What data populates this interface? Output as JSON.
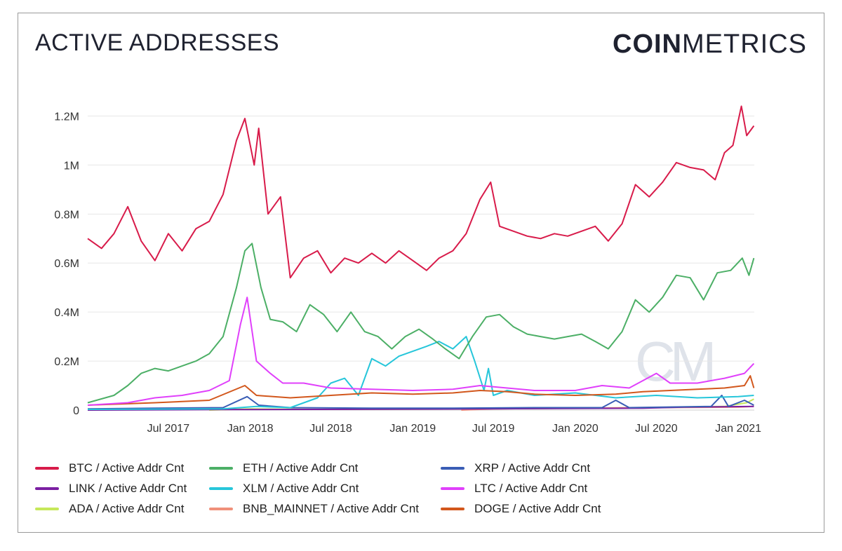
{
  "header": {
    "title": "ACTIVE ADDRESSES",
    "logo_bold": "COIN",
    "logo_light": "METRICS"
  },
  "watermark": "CM",
  "chart_data": {
    "type": "line",
    "title": "ACTIVE ADDRESSES",
    "xlabel": "",
    "ylabel": "",
    "ylim": [
      0,
      1250000
    ],
    "xlim": [
      "2017-01-01",
      "2021-02-06"
    ],
    "y_ticks": [
      {
        "value": 0,
        "label": "0"
      },
      {
        "value": 200000,
        "label": "0.2M"
      },
      {
        "value": 400000,
        "label": "0.4M"
      },
      {
        "value": 600000,
        "label": "0.6M"
      },
      {
        "value": 800000,
        "label": "0.8M"
      },
      {
        "value": 1000000,
        "label": "1M"
      },
      {
        "value": 1200000,
        "label": "1.2M"
      }
    ],
    "x_ticks": [
      {
        "date": "2017-07-01",
        "label": "Jul 2017"
      },
      {
        "date": "2018-01-01",
        "label": "Jan 2018"
      },
      {
        "date": "2018-07-01",
        "label": "Jul 2018"
      },
      {
        "date": "2019-01-01",
        "label": "Jan 2019"
      },
      {
        "date": "2019-07-01",
        "label": "Jul 2019"
      },
      {
        "date": "2020-01-01",
        "label": "Jan 2020"
      },
      {
        "date": "2020-07-01",
        "label": "Jul 2020"
      },
      {
        "date": "2021-01-01",
        "label": "Jan 2021"
      }
    ],
    "grid": true,
    "legend_position": "bottom",
    "series": [
      {
        "name": "BTC / Active Addr Cnt",
        "color": "#d81b4a",
        "points": [
          [
            "2017-01-01",
            700000
          ],
          [
            "2017-02-01",
            660000
          ],
          [
            "2017-03-01",
            720000
          ],
          [
            "2017-04-01",
            830000
          ],
          [
            "2017-05-01",
            690000
          ],
          [
            "2017-06-01",
            610000
          ],
          [
            "2017-07-01",
            720000
          ],
          [
            "2017-08-01",
            650000
          ],
          [
            "2017-09-01",
            740000
          ],
          [
            "2017-10-01",
            770000
          ],
          [
            "2017-11-01",
            880000
          ],
          [
            "2017-12-01",
            1100000
          ],
          [
            "2017-12-20",
            1190000
          ],
          [
            "2018-01-10",
            1000000
          ],
          [
            "2018-01-20",
            1150000
          ],
          [
            "2018-02-10",
            800000
          ],
          [
            "2018-03-10",
            870000
          ],
          [
            "2018-04-01",
            540000
          ],
          [
            "2018-05-01",
            620000
          ],
          [
            "2018-06-01",
            650000
          ],
          [
            "2018-07-01",
            560000
          ],
          [
            "2018-08-01",
            620000
          ],
          [
            "2018-09-01",
            600000
          ],
          [
            "2018-10-01",
            640000
          ],
          [
            "2018-11-01",
            600000
          ],
          [
            "2018-12-01",
            650000
          ],
          [
            "2019-01-01",
            610000
          ],
          [
            "2019-02-01",
            570000
          ],
          [
            "2019-03-01",
            620000
          ],
          [
            "2019-04-01",
            650000
          ],
          [
            "2019-05-01",
            720000
          ],
          [
            "2019-06-01",
            860000
          ],
          [
            "2019-06-25",
            930000
          ],
          [
            "2019-07-15",
            750000
          ],
          [
            "2019-08-15",
            730000
          ],
          [
            "2019-09-15",
            710000
          ],
          [
            "2019-10-15",
            700000
          ],
          [
            "2019-11-15",
            720000
          ],
          [
            "2019-12-15",
            710000
          ],
          [
            "2020-01-15",
            730000
          ],
          [
            "2020-02-15",
            750000
          ],
          [
            "2020-03-15",
            690000
          ],
          [
            "2020-04-15",
            760000
          ],
          [
            "2020-05-15",
            920000
          ],
          [
            "2020-06-15",
            870000
          ],
          [
            "2020-07-15",
            930000
          ],
          [
            "2020-08-15",
            1010000
          ],
          [
            "2020-09-15",
            990000
          ],
          [
            "2020-10-15",
            980000
          ],
          [
            "2020-11-10",
            940000
          ],
          [
            "2020-12-01",
            1050000
          ],
          [
            "2020-12-20",
            1080000
          ],
          [
            "2021-01-08",
            1240000
          ],
          [
            "2021-01-20",
            1120000
          ],
          [
            "2021-02-05",
            1160000
          ]
        ]
      },
      {
        "name": "ETH / Active Addr Cnt",
        "color": "#4caf66",
        "points": [
          [
            "2017-01-01",
            30000
          ],
          [
            "2017-03-01",
            60000
          ],
          [
            "2017-04-01",
            100000
          ],
          [
            "2017-05-01",
            150000
          ],
          [
            "2017-06-01",
            170000
          ],
          [
            "2017-07-01",
            160000
          ],
          [
            "2017-08-01",
            180000
          ],
          [
            "2017-09-01",
            200000
          ],
          [
            "2017-10-01",
            230000
          ],
          [
            "2017-11-01",
            300000
          ],
          [
            "2017-12-01",
            500000
          ],
          [
            "2017-12-20",
            650000
          ],
          [
            "2018-01-05",
            680000
          ],
          [
            "2018-01-25",
            500000
          ],
          [
            "2018-02-15",
            370000
          ],
          [
            "2018-03-15",
            360000
          ],
          [
            "2018-04-15",
            320000
          ],
          [
            "2018-05-15",
            430000
          ],
          [
            "2018-06-15",
            390000
          ],
          [
            "2018-07-15",
            320000
          ],
          [
            "2018-08-15",
            400000
          ],
          [
            "2018-09-15",
            320000
          ],
          [
            "2018-10-15",
            300000
          ],
          [
            "2018-11-15",
            250000
          ],
          [
            "2018-12-15",
            300000
          ],
          [
            "2019-01-15",
            330000
          ],
          [
            "2019-02-15",
            290000
          ],
          [
            "2019-03-15",
            250000
          ],
          [
            "2019-04-15",
            210000
          ],
          [
            "2019-05-15",
            300000
          ],
          [
            "2019-06-15",
            380000
          ],
          [
            "2019-07-15",
            390000
          ],
          [
            "2019-08-15",
            340000
          ],
          [
            "2019-09-15",
            310000
          ],
          [
            "2019-10-15",
            300000
          ],
          [
            "2019-11-15",
            290000
          ],
          [
            "2019-12-15",
            300000
          ],
          [
            "2020-01-15",
            310000
          ],
          [
            "2020-02-15",
            280000
          ],
          [
            "2020-03-15",
            250000
          ],
          [
            "2020-04-15",
            320000
          ],
          [
            "2020-05-15",
            450000
          ],
          [
            "2020-06-15",
            400000
          ],
          [
            "2020-07-15",
            460000
          ],
          [
            "2020-08-15",
            550000
          ],
          [
            "2020-09-15",
            540000
          ],
          [
            "2020-10-15",
            450000
          ],
          [
            "2020-11-15",
            560000
          ],
          [
            "2020-12-15",
            570000
          ],
          [
            "2021-01-10",
            620000
          ],
          [
            "2021-01-25",
            550000
          ],
          [
            "2021-02-05",
            620000
          ]
        ]
      },
      {
        "name": "XRP / Active Addr Cnt",
        "color": "#3a5db5",
        "points": [
          [
            "2017-01-01",
            5000
          ],
          [
            "2017-06-01",
            8000
          ],
          [
            "2017-11-01",
            10000
          ],
          [
            "2017-12-25",
            55000
          ],
          [
            "2018-01-20",
            20000
          ],
          [
            "2018-04-01",
            10000
          ],
          [
            "2018-10-01",
            8000
          ],
          [
            "2019-04-01",
            8000
          ],
          [
            "2019-10-01",
            10000
          ],
          [
            "2020-03-01",
            10000
          ],
          [
            "2020-04-01",
            40000
          ],
          [
            "2020-05-01",
            10000
          ],
          [
            "2020-11-01",
            15000
          ],
          [
            "2020-11-25",
            60000
          ],
          [
            "2020-12-10",
            15000
          ],
          [
            "2021-01-15",
            40000
          ],
          [
            "2021-02-05",
            20000
          ]
        ]
      },
      {
        "name": "LINK / Active Addr Cnt",
        "color": "#7b1fa2",
        "points": [
          [
            "2017-01-01",
            0
          ],
          [
            "2017-10-01",
            2000
          ],
          [
            "2018-06-01",
            3000
          ],
          [
            "2019-06-01",
            5000
          ],
          [
            "2020-06-01",
            8000
          ],
          [
            "2020-09-01",
            12000
          ],
          [
            "2021-02-05",
            15000
          ]
        ]
      },
      {
        "name": "XLM / Active Addr Cnt",
        "color": "#26c6da",
        "points": [
          [
            "2017-01-01",
            3000
          ],
          [
            "2017-11-01",
            5000
          ],
          [
            "2018-01-15",
            15000
          ],
          [
            "2018-04-01",
            10000
          ],
          [
            "2018-06-01",
            50000
          ],
          [
            "2018-07-01",
            110000
          ],
          [
            "2018-08-01",
            130000
          ],
          [
            "2018-09-01",
            60000
          ],
          [
            "2018-10-01",
            210000
          ],
          [
            "2018-11-01",
            180000
          ],
          [
            "2018-12-01",
            220000
          ],
          [
            "2019-01-01",
            240000
          ],
          [
            "2019-02-01",
            260000
          ],
          [
            "2019-03-01",
            280000
          ],
          [
            "2019-04-01",
            250000
          ],
          [
            "2019-05-01",
            300000
          ],
          [
            "2019-05-20",
            200000
          ],
          [
            "2019-06-10",
            80000
          ],
          [
            "2019-06-20",
            170000
          ],
          [
            "2019-07-01",
            60000
          ],
          [
            "2019-08-01",
            80000
          ],
          [
            "2019-10-01",
            60000
          ],
          [
            "2020-01-01",
            70000
          ],
          [
            "2020-04-01",
            50000
          ],
          [
            "2020-07-01",
            60000
          ],
          [
            "2020-10-01",
            50000
          ],
          [
            "2021-01-01",
            55000
          ],
          [
            "2021-02-05",
            60000
          ]
        ]
      },
      {
        "name": "LTC / Active Addr Cnt",
        "color": "#e040fb",
        "points": [
          [
            "2017-01-01",
            20000
          ],
          [
            "2017-04-01",
            30000
          ],
          [
            "2017-06-01",
            50000
          ],
          [
            "2017-08-01",
            60000
          ],
          [
            "2017-10-01",
            80000
          ],
          [
            "2017-11-15",
            120000
          ],
          [
            "2017-12-10",
            350000
          ],
          [
            "2017-12-25",
            460000
          ],
          [
            "2018-01-15",
            200000
          ],
          [
            "2018-02-15",
            150000
          ],
          [
            "2018-03-15",
            110000
          ],
          [
            "2018-05-01",
            110000
          ],
          [
            "2018-07-01",
            90000
          ],
          [
            "2018-10-01",
            85000
          ],
          [
            "2019-01-01",
            80000
          ],
          [
            "2019-04-01",
            85000
          ],
          [
            "2019-06-01",
            100000
          ],
          [
            "2019-08-01",
            90000
          ],
          [
            "2019-10-01",
            80000
          ],
          [
            "2020-01-01",
            80000
          ],
          [
            "2020-03-01",
            100000
          ],
          [
            "2020-05-01",
            90000
          ],
          [
            "2020-07-01",
            150000
          ],
          [
            "2020-08-01",
            110000
          ],
          [
            "2020-10-01",
            110000
          ],
          [
            "2020-12-01",
            130000
          ],
          [
            "2021-01-15",
            150000
          ],
          [
            "2021-02-05",
            190000
          ]
        ]
      },
      {
        "name": "ADA / Active Addr Cnt",
        "color": "#c6e85a",
        "points": [
          [
            "2017-10-01",
            0
          ],
          [
            "2018-01-01",
            5000
          ],
          [
            "2018-06-01",
            3000
          ],
          [
            "2019-06-01",
            5000
          ],
          [
            "2020-06-01",
            10000
          ],
          [
            "2020-12-01",
            15000
          ],
          [
            "2021-01-20",
            30000
          ],
          [
            "2021-02-05",
            45000
          ]
        ]
      },
      {
        "name": "BNB_MAINNET / Active Addr Cnt",
        "color": "#f0907a",
        "points": [
          [
            "2019-04-20",
            0
          ],
          [
            "2019-07-01",
            5000
          ],
          [
            "2020-01-01",
            8000
          ],
          [
            "2020-07-01",
            10000
          ],
          [
            "2021-01-01",
            12000
          ],
          [
            "2021-02-05",
            15000
          ]
        ]
      },
      {
        "name": "DOGE / Active Addr Cnt",
        "color": "#d2571c",
        "points": [
          [
            "2017-01-01",
            20000
          ],
          [
            "2017-06-01",
            30000
          ],
          [
            "2017-10-01",
            40000
          ],
          [
            "2017-12-20",
            100000
          ],
          [
            "2018-01-15",
            60000
          ],
          [
            "2018-04-01",
            50000
          ],
          [
            "2018-07-01",
            60000
          ],
          [
            "2018-10-01",
            70000
          ],
          [
            "2019-01-01",
            65000
          ],
          [
            "2019-04-01",
            70000
          ],
          [
            "2019-06-01",
            80000
          ],
          [
            "2019-08-01",
            75000
          ],
          [
            "2019-10-01",
            65000
          ],
          [
            "2020-01-01",
            60000
          ],
          [
            "2020-04-01",
            65000
          ],
          [
            "2020-06-01",
            75000
          ],
          [
            "2020-08-01",
            80000
          ],
          [
            "2020-10-01",
            85000
          ],
          [
            "2020-12-01",
            90000
          ],
          [
            "2021-01-15",
            100000
          ],
          [
            "2021-01-28",
            140000
          ],
          [
            "2021-02-05",
            90000
          ]
        ]
      }
    ]
  }
}
